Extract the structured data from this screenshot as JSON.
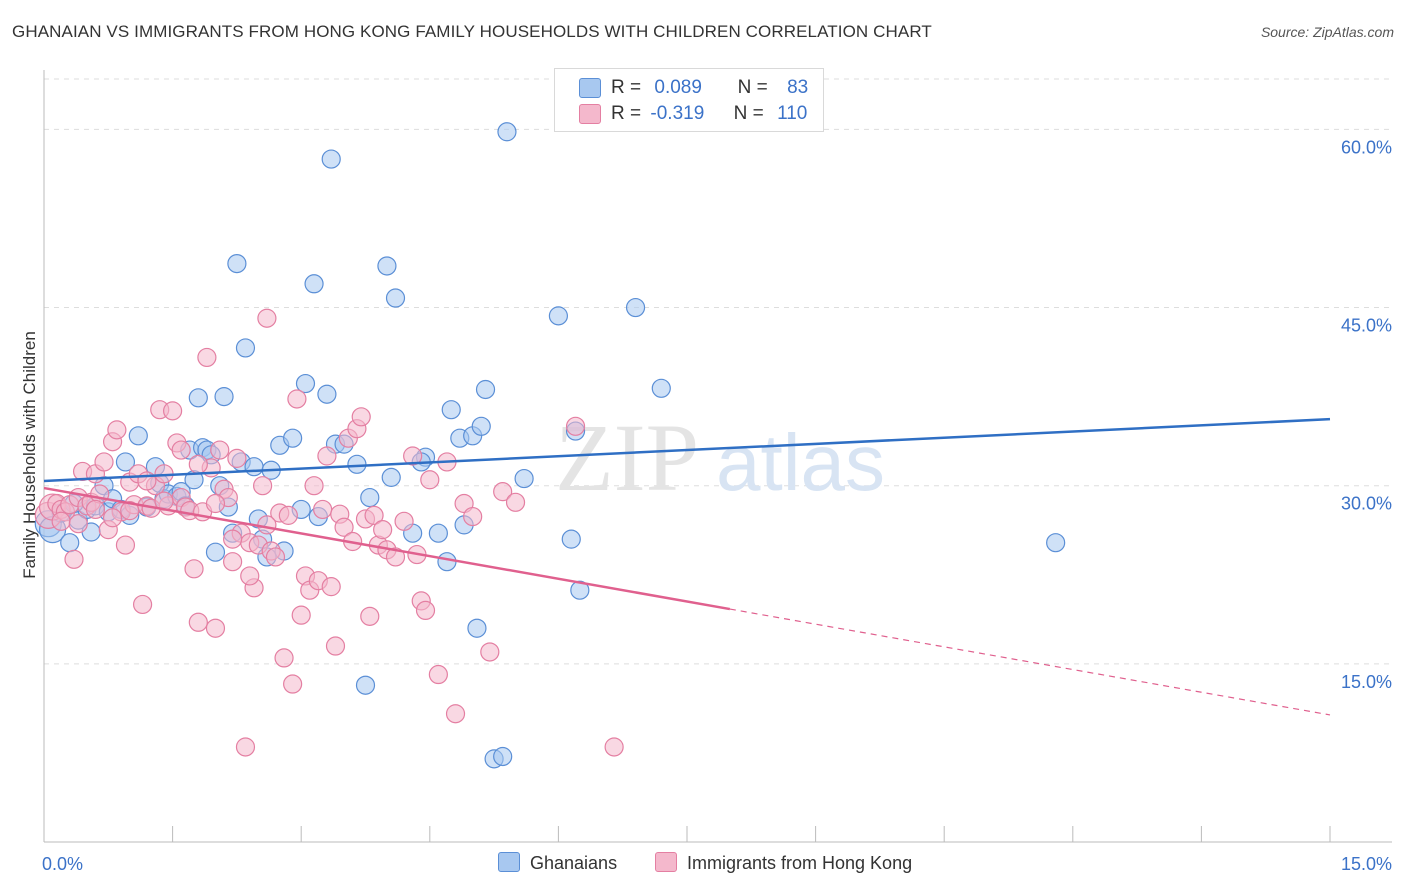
{
  "title": "GHANAIAN VS IMMIGRANTS FROM HONG KONG FAMILY HOUSEHOLDS WITH CHILDREN CORRELATION CHART",
  "source": "Source: ZipAtlas.com",
  "watermark": {
    "zip": "ZIP",
    "atlas": "atlas"
  },
  "legend": {
    "r_label": "R =",
    "n_label": "N =",
    "series": [
      {
        "name": "Ghanaians",
        "r": "0.089",
        "n": "83",
        "color": "#a8c8f0",
        "stroke": "#5b8fd6",
        "line": "#2f6fc4"
      },
      {
        "name": "Immigrants from Hong Kong",
        "r": "-0.319",
        "n": "110",
        "color": "#f4b8cc",
        "stroke": "#e47fa2",
        "line": "#e0608e"
      }
    ]
  },
  "chart_data": {
    "type": "scatter",
    "title": "GHANAIAN VS IMMIGRANTS FROM HONG KONG FAMILY HOUSEHOLDS WITH CHILDREN CORRELATION CHART",
    "xlabel": "",
    "ylabel": "Family Households with Children",
    "xlim": [
      0,
      15
    ],
    "ylim": [
      0,
      65
    ],
    "x_tick_labels": [
      {
        "value": 0,
        "label": "0.0%"
      },
      {
        "value": 15,
        "label": "15.0%"
      }
    ],
    "y_tick_labels": [
      {
        "value": 15,
        "label": "15.0%"
      },
      {
        "value": 30,
        "label": "30.0%"
      },
      {
        "value": 45,
        "label": "45.0%"
      },
      {
        "value": 60,
        "label": "60.0%"
      }
    ],
    "series": [
      {
        "name": "Ghanaians",
        "trend": {
          "x0": 0,
          "y0": 30.4,
          "x1": 15,
          "y1": 35.6,
          "solid_until": 15
        },
        "points": [
          [
            0.05,
            26.8
          ],
          [
            0.1,
            26.3
          ],
          [
            0.2,
            27.7
          ],
          [
            0.3,
            25.2
          ],
          [
            0.4,
            27.1
          ],
          [
            0.5,
            28.0
          ],
          [
            0.55,
            26.1
          ],
          [
            0.6,
            28.3
          ],
          [
            0.7,
            30.0
          ],
          [
            0.75,
            27.8
          ],
          [
            0.8,
            28.9
          ],
          [
            0.9,
            28.0
          ],
          [
            0.95,
            32.0
          ],
          [
            1.1,
            34.2
          ],
          [
            1.2,
            28.2
          ],
          [
            1.3,
            31.6
          ],
          [
            1.35,
            30.2
          ],
          [
            1.4,
            28.9
          ],
          [
            1.45,
            29.3
          ],
          [
            1.55,
            29.1
          ],
          [
            1.6,
            29.5
          ],
          [
            1.65,
            28.3
          ],
          [
            1.7,
            33.0
          ],
          [
            1.75,
            30.5
          ],
          [
            1.8,
            37.4
          ],
          [
            1.85,
            33.2
          ],
          [
            1.9,
            33.0
          ],
          [
            1.95,
            32.6
          ],
          [
            2.0,
            24.4
          ],
          [
            2.05,
            30.0
          ],
          [
            2.1,
            37.5
          ],
          [
            2.15,
            28.2
          ],
          [
            2.25,
            48.7
          ],
          [
            2.3,
            32.0
          ],
          [
            2.35,
            41.6
          ],
          [
            2.45,
            31.6
          ],
          [
            2.5,
            27.2
          ],
          [
            2.55,
            25.5
          ],
          [
            2.6,
            24.0
          ],
          [
            2.65,
            31.3
          ],
          [
            2.75,
            33.4
          ],
          [
            2.8,
            24.5
          ],
          [
            2.9,
            34.0
          ],
          [
            3.0,
            28.0
          ],
          [
            3.05,
            38.6
          ],
          [
            3.15,
            47.0
          ],
          [
            3.2,
            27.4
          ],
          [
            3.3,
            37.7
          ],
          [
            3.35,
            57.5
          ],
          [
            3.4,
            33.5
          ],
          [
            3.5,
            33.5
          ],
          [
            3.65,
            31.8
          ],
          [
            3.75,
            13.2
          ],
          [
            4.0,
            48.5
          ],
          [
            4.05,
            30.7
          ],
          [
            4.1,
            45.8
          ],
          [
            4.3,
            26.0
          ],
          [
            4.45,
            32.4
          ],
          [
            4.6,
            26.0
          ],
          [
            4.7,
            23.6
          ],
          [
            4.75,
            36.4
          ],
          [
            4.85,
            34.0
          ],
          [
            4.9,
            26.7
          ],
          [
            5.0,
            34.2
          ],
          [
            5.05,
            18.0
          ],
          [
            5.1,
            35.0
          ],
          [
            5.15,
            38.1
          ],
          [
            5.25,
            7.0
          ],
          [
            5.35,
            7.2
          ],
          [
            5.4,
            59.8
          ],
          [
            5.6,
            30.6
          ],
          [
            6.0,
            44.3
          ],
          [
            6.15,
            25.5
          ],
          [
            6.2,
            34.6
          ],
          [
            6.25,
            21.2
          ],
          [
            6.9,
            45.0
          ],
          [
            7.2,
            38.2
          ],
          [
            11.8,
            25.2
          ],
          [
            0.35,
            28.5
          ],
          [
            1.0,
            27.5
          ],
          [
            2.2,
            26.0
          ],
          [
            3.8,
            29.0
          ],
          [
            4.4,
            32.0
          ]
        ]
      },
      {
        "name": "Immigrants from Hong Kong",
        "trend": {
          "x0": 0,
          "y0": 29.8,
          "x1": 15,
          "y1": 10.7,
          "solid_until": 8
        },
        "points": [
          [
            0.05,
            27.5
          ],
          [
            0.1,
            28.2
          ],
          [
            0.15,
            28.5
          ],
          [
            0.2,
            28.0
          ],
          [
            0.25,
            27.8
          ],
          [
            0.3,
            28.4
          ],
          [
            0.35,
            23.8
          ],
          [
            0.4,
            29.0
          ],
          [
            0.45,
            31.2
          ],
          [
            0.5,
            28.3
          ],
          [
            0.55,
            28.6
          ],
          [
            0.6,
            31.0
          ],
          [
            0.65,
            29.3
          ],
          [
            0.7,
            32.0
          ],
          [
            0.75,
            26.3
          ],
          [
            0.8,
            33.7
          ],
          [
            0.85,
            34.7
          ],
          [
            0.9,
            27.8
          ],
          [
            0.95,
            25.0
          ],
          [
            1.0,
            30.3
          ],
          [
            1.05,
            28.4
          ],
          [
            1.1,
            31.0
          ],
          [
            1.15,
            20.0
          ],
          [
            1.2,
            28.3
          ],
          [
            1.25,
            28.1
          ],
          [
            1.3,
            30.0
          ],
          [
            1.35,
            36.4
          ],
          [
            1.4,
            31.0
          ],
          [
            1.45,
            28.3
          ],
          [
            1.5,
            36.3
          ],
          [
            1.55,
            33.6
          ],
          [
            1.6,
            29.0
          ],
          [
            1.65,
            28.2
          ],
          [
            1.7,
            27.9
          ],
          [
            1.75,
            23.0
          ],
          [
            1.8,
            18.5
          ],
          [
            1.85,
            27.8
          ],
          [
            1.9,
            40.8
          ],
          [
            1.95,
            31.5
          ],
          [
            2.0,
            18.0
          ],
          [
            2.05,
            33.0
          ],
          [
            2.1,
            29.7
          ],
          [
            2.15,
            29.0
          ],
          [
            2.2,
            23.6
          ],
          [
            2.25,
            32.3
          ],
          [
            2.3,
            26.0
          ],
          [
            2.35,
            8.0
          ],
          [
            2.4,
            25.2
          ],
          [
            2.45,
            21.4
          ],
          [
            2.5,
            25.0
          ],
          [
            2.55,
            30.0
          ],
          [
            2.6,
            44.1
          ],
          [
            2.65,
            24.5
          ],
          [
            2.7,
            24.0
          ],
          [
            2.75,
            27.7
          ],
          [
            2.8,
            15.5
          ],
          [
            2.85,
            27.5
          ],
          [
            2.9,
            13.3
          ],
          [
            2.95,
            37.3
          ],
          [
            3.0,
            19.1
          ],
          [
            3.05,
            22.4
          ],
          [
            3.1,
            21.2
          ],
          [
            3.15,
            30.0
          ],
          [
            3.2,
            22.0
          ],
          [
            3.25,
            28.0
          ],
          [
            3.3,
            32.5
          ],
          [
            3.35,
            21.5
          ],
          [
            3.4,
            16.5
          ],
          [
            3.45,
            27.6
          ],
          [
            3.5,
            26.5
          ],
          [
            3.55,
            34.0
          ],
          [
            3.6,
            25.3
          ],
          [
            3.65,
            34.8
          ],
          [
            3.7,
            35.8
          ],
          [
            3.75,
            27.2
          ],
          [
            3.8,
            19.0
          ],
          [
            3.85,
            27.5
          ],
          [
            3.9,
            25.0
          ],
          [
            3.95,
            26.3
          ],
          [
            4.0,
            24.6
          ],
          [
            4.1,
            24.0
          ],
          [
            4.2,
            27.0
          ],
          [
            4.3,
            32.5
          ],
          [
            4.35,
            24.2
          ],
          [
            4.4,
            20.3
          ],
          [
            4.45,
            19.5
          ],
          [
            4.5,
            30.5
          ],
          [
            4.6,
            14.1
          ],
          [
            4.7,
            32.0
          ],
          [
            4.8,
            10.8
          ],
          [
            4.9,
            28.5
          ],
          [
            5.0,
            27.4
          ],
          [
            5.2,
            16.0
          ],
          [
            5.35,
            29.5
          ],
          [
            5.5,
            28.6
          ],
          [
            6.2,
            35.0
          ],
          [
            6.65,
            8.0
          ],
          [
            0.2,
            27.0
          ],
          [
            0.4,
            26.8
          ],
          [
            0.6,
            28.0
          ],
          [
            0.8,
            27.3
          ],
          [
            1.0,
            27.9
          ],
          [
            1.2,
            30.4
          ],
          [
            1.4,
            28.7
          ],
          [
            1.6,
            33.0
          ],
          [
            1.8,
            31.8
          ],
          [
            2.0,
            28.5
          ],
          [
            2.2,
            25.5
          ],
          [
            2.4,
            22.4
          ],
          [
            2.6,
            26.7
          ]
        ]
      }
    ]
  }
}
